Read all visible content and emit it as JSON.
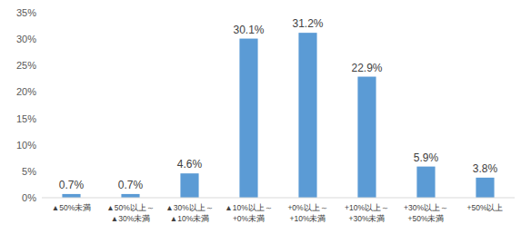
{
  "chart_data": {
    "type": "bar",
    "categories": [
      "▲50%未満",
      "▲50%以上～\n▲30%未満",
      "▲30%以上～\n▲10%未満",
      "▲10%以上～\n+0%未満",
      "+0%以上～\n+10%未満",
      "+10%以上～\n+30%未満",
      "+30%以上～\n+50%未満",
      "+50%以上"
    ],
    "values": [
      0.7,
      0.7,
      4.6,
      30.1,
      31.2,
      22.9,
      5.9,
      3.8
    ],
    "value_labels": [
      "0.7%",
      "0.7%",
      "4.6%",
      "30.1%",
      "31.2%",
      "22.9%",
      "5.9%",
      "3.8%"
    ],
    "data_labels": true,
    "color": "#5b9bd5",
    "ylim": [
      0,
      35
    ],
    "yticks": [
      {
        "value": 0,
        "label": "0%"
      },
      {
        "value": 5,
        "label": "5%"
      },
      {
        "value": 10,
        "label": "10%"
      },
      {
        "value": 15,
        "label": "15%"
      },
      {
        "value": 20,
        "label": "20%"
      },
      {
        "value": 25,
        "label": "25%"
      },
      {
        "value": 30,
        "label": "30%"
      },
      {
        "value": 35,
        "label": "35%"
      }
    ],
    "grid": false
  }
}
